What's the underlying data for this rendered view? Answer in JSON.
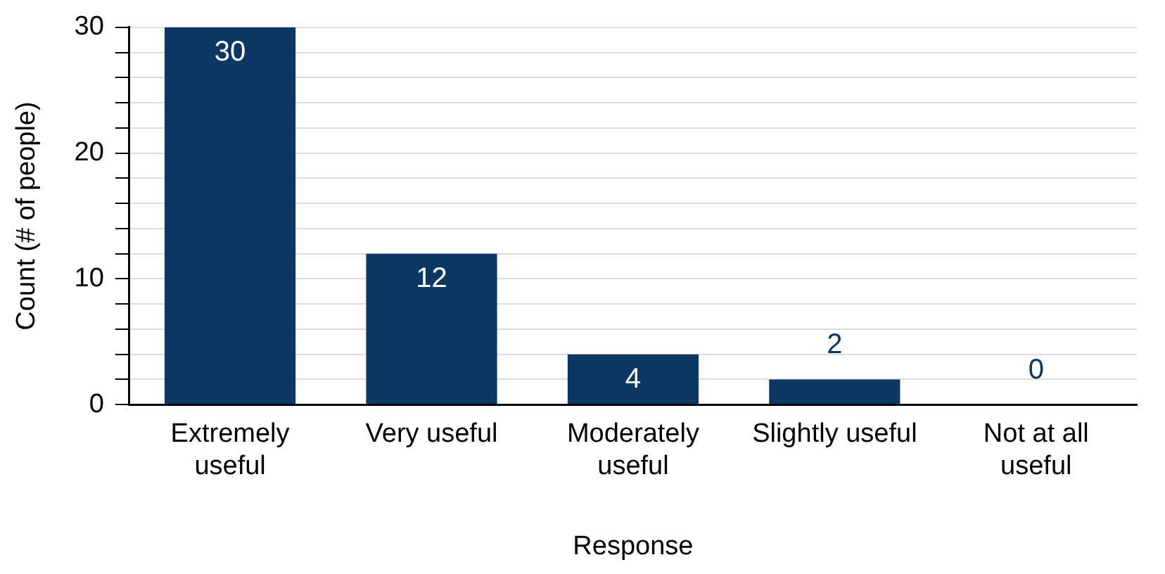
{
  "chart_data": {
    "type": "bar",
    "xlabel": "Response",
    "ylabel": "Count (# of people)",
    "categories": [
      "Extremely useful",
      "Very useful",
      "Moderately useful",
      "Slightly useful",
      "Not at all useful"
    ],
    "values": [
      30,
      12,
      4,
      2,
      0
    ],
    "color": "#0d3763",
    "ylim": [
      0,
      30
    ],
    "yticks": [
      0,
      {
        "value": 2,
        "label": null
      },
      {
        "value": 4,
        "label": null
      },
      {
        "value": 6,
        "label": null
      },
      {
        "value": 8,
        "label": null
      },
      10,
      {
        "value": 12,
        "label": null
      },
      {
        "value": 14,
        "label": null
      },
      {
        "value": 16,
        "label": null
      },
      {
        "value": 18,
        "label": null
      },
      20,
      {
        "value": 22,
        "label": null
      },
      {
        "value": 24,
        "label": null
      },
      {
        "value": 26,
        "label": null
      },
      {
        "value": 28,
        "label": null
      },
      30
    ],
    "grid": "y",
    "legend": false,
    "data_labels": true
  }
}
